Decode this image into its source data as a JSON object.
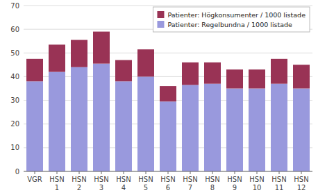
{
  "chart_data": {
    "type": "bar",
    "stacked": true,
    "categories": [
      "VGR",
      "HSN\n1",
      "HSN\n2",
      "HSN\n3",
      "HSN\n4",
      "HSN\n5",
      "HSN\n6",
      "HSN\n7",
      "HSN\n8",
      "HSN\n9",
      "HSN\n10",
      "HSN\n11",
      "HSN\n12"
    ],
    "series": [
      {
        "name": "Patienter: Regelbundna / 1000 listade",
        "color": "#9999dd",
        "values": [
          38,
          42,
          44,
          45.5,
          38,
          40,
          29.5,
          36.5,
          37,
          35,
          35,
          37,
          35
        ]
      },
      {
        "name": "Patienter: Högkonsumenter / 1000 listade",
        "color": "#993355",
        "values": [
          9.5,
          11.5,
          11.5,
          13.5,
          9,
          11.5,
          6.5,
          9.5,
          9,
          8,
          8,
          10.5,
          10
        ]
      }
    ],
    "ylim": [
      0,
      70
    ],
    "yticks": [
      0,
      10,
      20,
      30,
      40,
      50,
      60,
      70
    ],
    "grid": true,
    "legend": "upper right"
  }
}
